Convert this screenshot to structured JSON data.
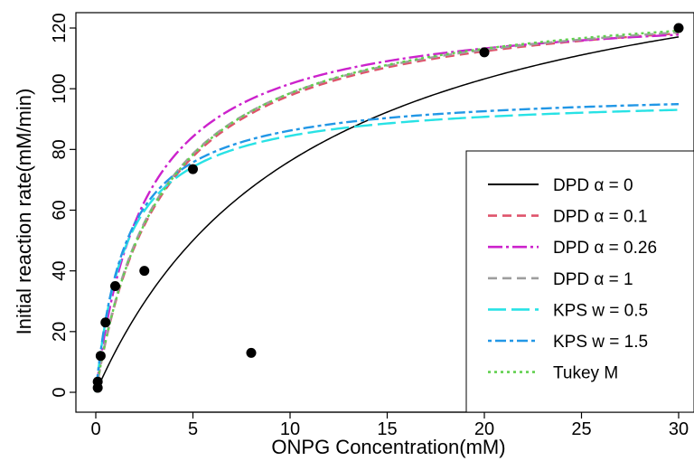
{
  "chart_data": {
    "type": "scatter",
    "xlabel": "ONPG Concentration(mM)",
    "ylabel": "Initial reaction rate(mM/min)",
    "xlim": [
      0,
      30
    ],
    "ylim": [
      0,
      120
    ],
    "xticks": [
      0,
      5,
      10,
      15,
      20,
      25,
      30
    ],
    "yticks": [
      0,
      20,
      40,
      60,
      80,
      100,
      120
    ],
    "grid": false,
    "legend_position": "bottom-right",
    "points": {
      "x": [
        0.1,
        0.1,
        0.25,
        0.5,
        1,
        2.5,
        5,
        8,
        20,
        30
      ],
      "y": [
        1.5,
        3.5,
        12,
        23,
        35,
        40,
        73.5,
        13,
        112,
        120
      ]
    },
    "series": [
      {
        "name": "DPD α = 0",
        "color": "#000000",
        "dash": "solid",
        "vmax": 160,
        "km": 11
      },
      {
        "name": "DPD α = 0.1",
        "color": "#df536b",
        "dash": "10,6",
        "vmax": 132,
        "km": 3.5
      },
      {
        "name": "DPD α = 0.26",
        "color": "#cc22cc",
        "dash": "16,4,3,4",
        "vmax": 128,
        "km": 2.6
      },
      {
        "name": "DPD α = 1",
        "color": "#9e9e9e",
        "dash": "10,6",
        "vmax": 132,
        "km": 3.4
      },
      {
        "name": "KPS w = 0.5",
        "color": "#28e2e5",
        "dash": "20,6",
        "vmax": 98,
        "km": 1.6
      },
      {
        "name": "KPS w = 1.5",
        "color": "#2297e6",
        "dash": "4,4,12,4",
        "vmax": 100,
        "km": 1.6
      },
      {
        "name": "Tukey M",
        "color": "#61d04f",
        "dash": "3,4",
        "vmax": 133,
        "km": 3.5
      }
    ]
  }
}
